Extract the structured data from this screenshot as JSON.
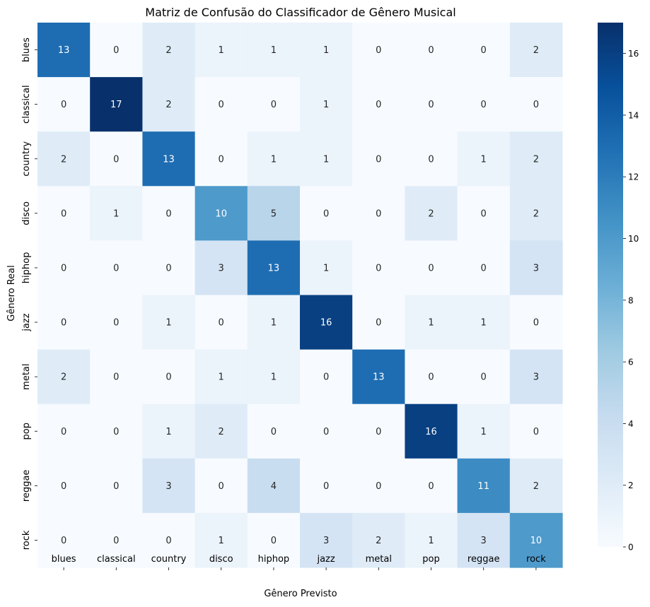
{
  "chart_data": {
    "type": "heatmap",
    "title": "Matriz de Confusão do Classificador de Gênero Musical",
    "xlabel": "Gênero Previsto",
    "ylabel": "Gênero Real",
    "x_categories": [
      "blues",
      "classical",
      "country",
      "disco",
      "hiphop",
      "jazz",
      "metal",
      "pop",
      "reggae",
      "rock"
    ],
    "y_categories": [
      "blues",
      "classical",
      "country",
      "disco",
      "hiphop",
      "jazz",
      "metal",
      "pop",
      "reggae",
      "rock"
    ],
    "values": [
      [
        13,
        0,
        2,
        1,
        1,
        1,
        0,
        0,
        0,
        2
      ],
      [
        0,
        17,
        2,
        0,
        0,
        1,
        0,
        0,
        0,
        0
      ],
      [
        2,
        0,
        13,
        0,
        1,
        1,
        0,
        0,
        1,
        2
      ],
      [
        0,
        1,
        0,
        10,
        5,
        0,
        0,
        2,
        0,
        2
      ],
      [
        0,
        0,
        0,
        3,
        13,
        1,
        0,
        0,
        0,
        3
      ],
      [
        0,
        0,
        1,
        0,
        1,
        16,
        0,
        1,
        1,
        0
      ],
      [
        2,
        0,
        0,
        1,
        1,
        0,
        13,
        0,
        0,
        3
      ],
      [
        0,
        0,
        1,
        2,
        0,
        0,
        0,
        16,
        1,
        0
      ],
      [
        0,
        0,
        3,
        0,
        4,
        0,
        0,
        0,
        11,
        2
      ],
      [
        0,
        0,
        0,
        1,
        0,
        3,
        2,
        1,
        3,
        10
      ]
    ],
    "colormap": "Blues",
    "colorbar": {
      "min": 0,
      "max": 17,
      "ticks": [
        0,
        2,
        4,
        6,
        8,
        10,
        12,
        14,
        16
      ]
    },
    "annotations": true,
    "grid": false
  }
}
